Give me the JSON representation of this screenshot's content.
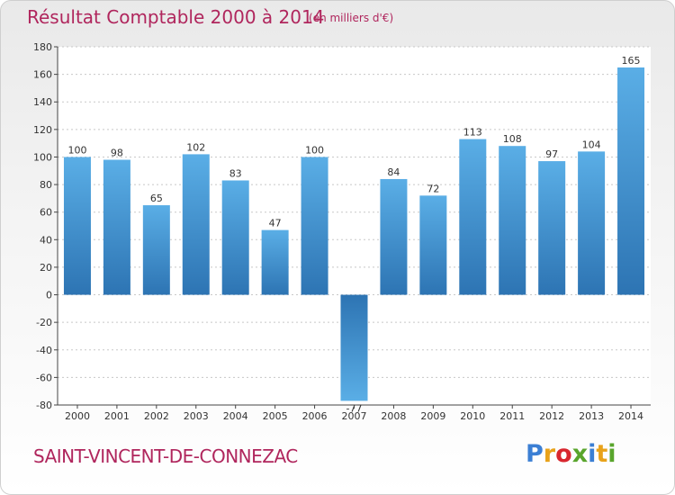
{
  "header": {
    "title": "Résultat Comptable 2000 à 2014",
    "subtitle": "(en milliers d'€)"
  },
  "footer": {
    "commune": "SAINT-VINCENT-DE-CONNEZAC",
    "logo_text": "Proxiti",
    "logo_colors": [
      "#3b7fd4",
      "#e8a21a",
      "#d8262e",
      "#59a52c",
      "#3b7fd4",
      "#e8a21a",
      "#59a52c"
    ]
  },
  "colors": {
    "title": "#b0265d",
    "bar_top": "#5aaee6",
    "bar_bottom": "#2d74b3",
    "grid": "#c8c8c8",
    "axis": "#444444"
  },
  "chart_data": {
    "type": "bar",
    "categories": [
      "2000",
      "2001",
      "2002",
      "2003",
      "2004",
      "2005",
      "2006",
      "2007",
      "2008",
      "2009",
      "2010",
      "2011",
      "2012",
      "2013",
      "2014"
    ],
    "values": [
      100,
      98,
      65,
      102,
      83,
      47,
      100,
      -77,
      84,
      72,
      113,
      108,
      97,
      104,
      165
    ],
    "value_labels": [
      "100",
      "98",
      "65",
      "102",
      "83",
      "47",
      "100",
      "-77",
      "84",
      "72",
      "113",
      "108",
      "97",
      "104",
      "165"
    ],
    "ylim": [
      -80,
      180
    ],
    "yticks": [
      -80,
      -60,
      -40,
      -20,
      0,
      20,
      40,
      60,
      80,
      100,
      120,
      140,
      160,
      180
    ],
    "grid": true,
    "legend": "none"
  }
}
